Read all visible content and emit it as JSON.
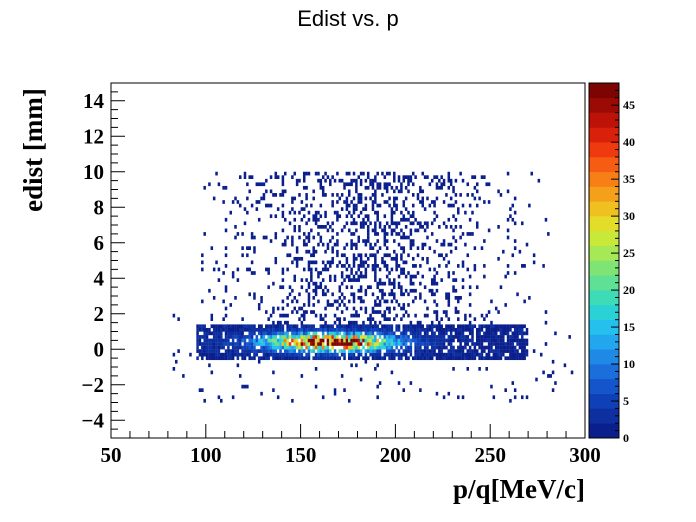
{
  "chart_data": {
    "type": "heatmap",
    "title": "Edist vs. p",
    "xlabel": "p/q[MeV/c]",
    "ylabel": "edist [mm]",
    "xlim": [
      50,
      300
    ],
    "ylim": [
      -5,
      15
    ],
    "x_ticks": [
      "50",
      "100",
      "150",
      "200",
      "250",
      "300"
    ],
    "y_ticks": [
      "−4",
      "−2",
      "0",
      "2",
      "4",
      "6",
      "8",
      "10",
      "12",
      "14"
    ],
    "colorbar": {
      "range": [
        0,
        48
      ],
      "ticks": [
        "0",
        "5",
        "10",
        "15",
        "20",
        "25",
        "30",
        "35",
        "40",
        "45"
      ],
      "colors": [
        "#0b1f8c",
        "#0d2fa0",
        "#1040b8",
        "#1455cc",
        "#1a6fdc",
        "#1e8ae6",
        "#22a6ee",
        "#25c0ee",
        "#2ad2d6",
        "#3ddbb6",
        "#5ee095",
        "#80e474",
        "#a6e855",
        "#c8e93a",
        "#e3dc28",
        "#f0c020",
        "#f5a01a",
        "#f77f16",
        "#f65c12",
        "#ee3a0e",
        "#d8200a",
        "#bc1207",
        "#9c0a05",
        "#7c0503"
      ]
    },
    "regions": [
      {
        "name": "dense band",
        "x_range": [
          95,
          270
        ],
        "y_range": [
          -0.6,
          1.4
        ],
        "peak": {
          "x": 165,
          "y": 0.4,
          "count": 45
        }
      },
      {
        "name": "sparse tail",
        "x_range": [
          95,
          290
        ],
        "y_range": [
          1.4,
          10
        ],
        "typical_count": 1
      }
    ]
  }
}
